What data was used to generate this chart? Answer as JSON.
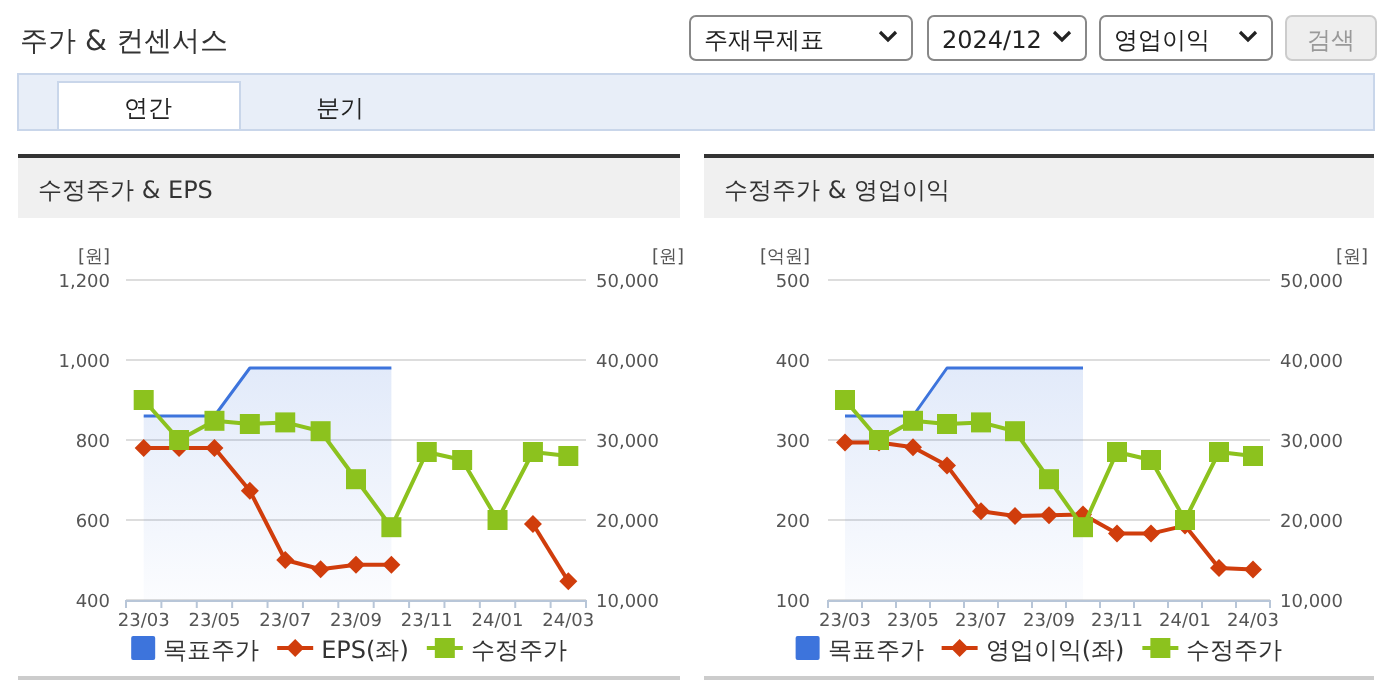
{
  "chart_data": [
    {
      "type": "other",
      "title": "주가 & 컨센서스",
      "annotations": [
        "주재무제표",
        "2024/12",
        "영업이익",
        "검색",
        "연간",
        "분기"
      ]
    },
    {
      "type": "line",
      "title": "수정주가 & EPS",
      "ylabel": "[원]",
      "y2label": "[원]",
      "categories": [
        "23/03",
        null,
        "23/05",
        null,
        "23/07",
        null,
        "23/09",
        null,
        "23/11",
        null,
        "24/01",
        null,
        "24/03"
      ],
      "ylim": [
        400,
        1200
      ],
      "yticks": [
        400,
        600,
        800,
        {
          "value": 1000,
          "label": "1,000"
        },
        {
          "value": 1200,
          "label": "1,200"
        }
      ],
      "y2lim": [
        10000,
        50000
      ],
      "y2ticks": [
        {
          "value": 10000,
          "label": "10,000"
        },
        {
          "value": 20000,
          "label": "20,000"
        },
        {
          "value": 30000,
          "label": "30,000"
        },
        {
          "value": 40000,
          "label": "40,000"
        },
        {
          "value": 50000,
          "label": "50,000"
        }
      ],
      "grid": "y",
      "legend": "bottom",
      "series": [
        {
          "name": "목표주가",
          "type": "area",
          "axis": "y2",
          "color": "#3d74dc",
          "marker": "none",
          "values": [
            33000,
            33000,
            33000,
            39000,
            39000,
            39000,
            39000,
            39000,
            null,
            null,
            null,
            null,
            null
          ]
        },
        {
          "name": "EPS(좌)",
          "type": "line",
          "color": "#d03d0c",
          "marker": "diamond",
          "values": [
            780,
            780,
            780,
            673,
            500,
            477,
            488,
            488,
            null,
            null,
            null,
            590,
            447
          ]
        },
        {
          "name": "수정주가",
          "type": "line",
          "axis": "y2",
          "color": "#8cc21e",
          "marker": "square",
          "values": [
            35000,
            30000,
            32400,
            32000,
            32200,
            31100,
            25100,
            19100,
            28500,
            27500,
            20000,
            28500,
            28000
          ]
        }
      ]
    },
    {
      "type": "line",
      "title": "수정주가 & 영업이익",
      "ylabel": "[억원]",
      "y2label": "[원]",
      "categories": [
        "23/03",
        null,
        "23/05",
        null,
        "23/07",
        null,
        "23/09",
        null,
        "23/11",
        null,
        "24/01",
        null,
        "24/03"
      ],
      "ylim": [
        100,
        500
      ],
      "yticks": [
        100,
        200,
        300,
        400,
        500
      ],
      "y2lim": [
        10000,
        50000
      ],
      "y2ticks": [
        {
          "value": 10000,
          "label": "10,000"
        },
        {
          "value": 20000,
          "label": "20,000"
        },
        {
          "value": 30000,
          "label": "30,000"
        },
        {
          "value": 40000,
          "label": "40,000"
        },
        {
          "value": 50000,
          "label": "50,000"
        }
      ],
      "grid": "y",
      "legend": "bottom",
      "series": [
        {
          "name": "목표주가",
          "type": "area",
          "axis": "y2",
          "color": "#3d74dc",
          "marker": "none",
          "values": [
            33000,
            33000,
            33000,
            39000,
            39000,
            39000,
            39000,
            39000,
            null,
            null,
            null,
            null,
            null
          ]
        },
        {
          "name": "영업이익(좌)",
          "type": "line",
          "color": "#d03d0c",
          "marker": "diamond",
          "values": [
            297,
            297,
            291,
            268,
            211,
            205,
            206,
            207,
            183,
            183,
            193,
            140,
            138
          ]
        },
        {
          "name": "수정주가",
          "type": "line",
          "axis": "y2",
          "color": "#8cc21e",
          "marker": "square",
          "values": [
            35000,
            30000,
            32400,
            32000,
            32200,
            31100,
            25100,
            19100,
            28500,
            27500,
            20000,
            28500,
            28000
          ]
        }
      ]
    }
  ]
}
